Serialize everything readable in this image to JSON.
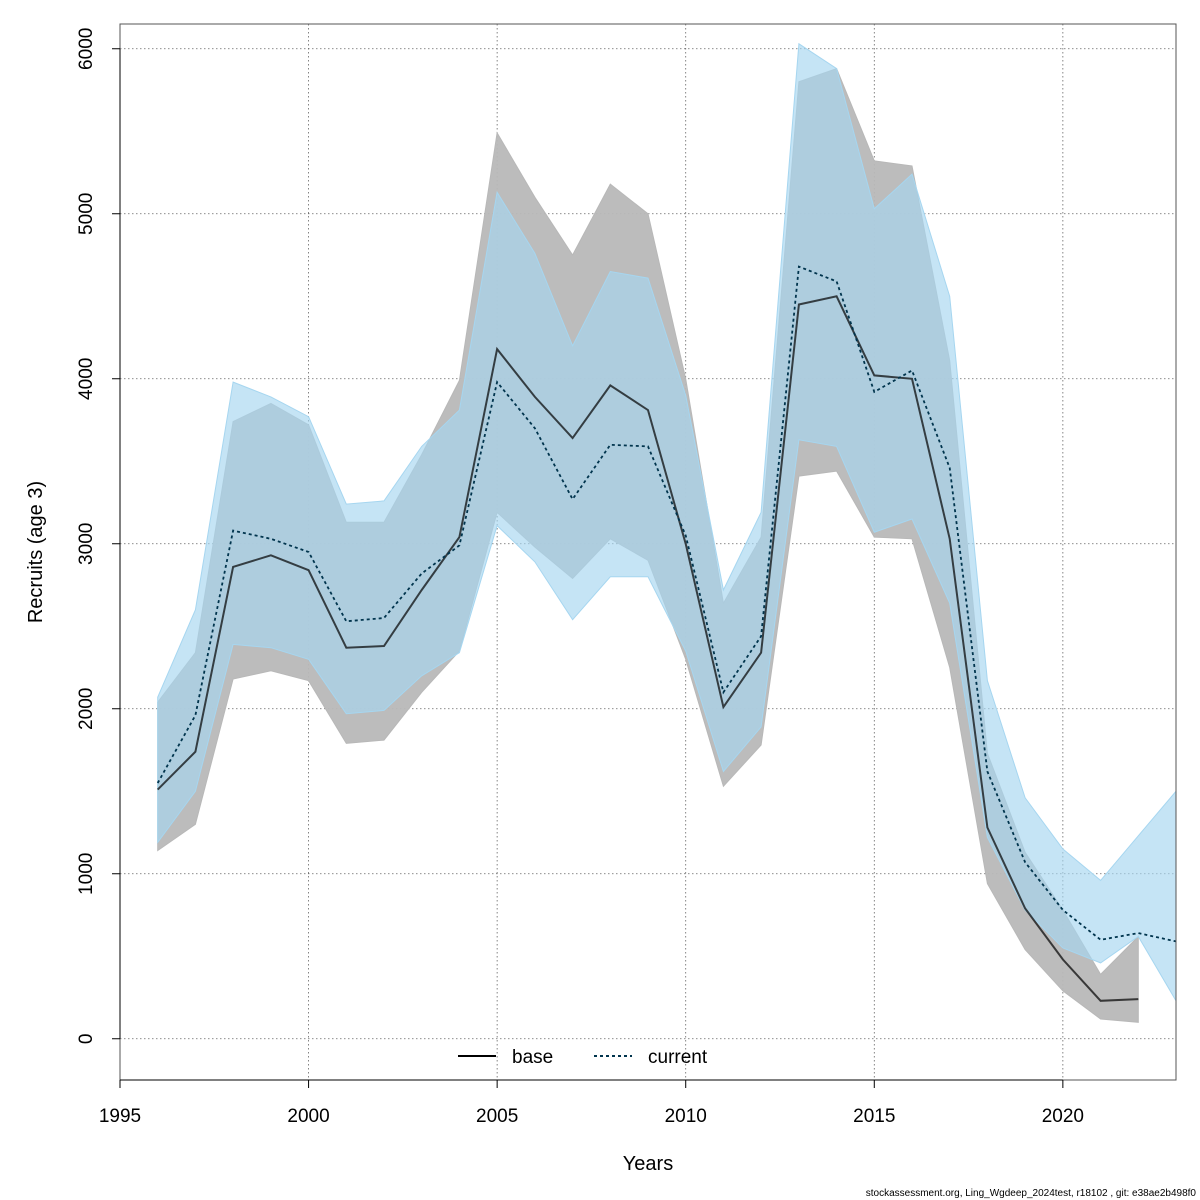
{
  "chart_data": {
    "type": "area",
    "xlabel": "Years",
    "ylabel": "Recruits (age 3)",
    "xlim": [
      1995,
      2023
    ],
    "ylim": [
      -250,
      6150
    ],
    "x_ticks": [
      1995,
      2000,
      2005,
      2010,
      2015,
      2020
    ],
    "y_ticks": [
      0,
      1000,
      2000,
      3000,
      4000,
      5000,
      6000
    ],
    "grid": true,
    "legend_position": "bottom-center",
    "series": [
      {
        "name": "base",
        "line_style": "solid",
        "color": "#000000",
        "band_color": "#b8b8b8",
        "x": [
          1996,
          1997,
          1998,
          1999,
          2000,
          2001,
          2002,
          2003,
          2004,
          2005,
          2006,
          2007,
          2008,
          2009,
          2010,
          2011,
          2012,
          2013,
          2014,
          2015,
          2016,
          2017,
          2018,
          2019,
          2020,
          2021,
          2022
        ],
        "values": [
          1510,
          1740,
          2860,
          2930,
          2840,
          2370,
          2380,
          2720,
          3040,
          4180,
          3890,
          3640,
          3960,
          3810,
          3000,
          2010,
          2340,
          4450,
          4500,
          4020,
          4000,
          3030,
          1280,
          790,
          480,
          230,
          240
        ],
        "lower": [
          1140,
          1300,
          2180,
          2230,
          2170,
          1790,
          1810,
          2100,
          2350,
          3190,
          2980,
          2790,
          3030,
          2900,
          2300,
          1530,
          1780,
          3410,
          3440,
          3040,
          3030,
          2250,
          940,
          540,
          290,
          120,
          100
        ],
        "upper": [
          2040,
          2340,
          3740,
          3850,
          3720,
          3130,
          3130,
          3540,
          3990,
          5490,
          5100,
          4750,
          5180,
          5000,
          4000,
          2640,
          3040,
          5800,
          5880,
          5320,
          5290,
          4110,
          1730,
          1130,
          780,
          390,
          620
        ]
      },
      {
        "name": "current",
        "line_style": "dotted",
        "color": "#00344d",
        "band_color": "#a6d6f0",
        "x": [
          1996,
          1997,
          1998,
          1999,
          2000,
          2001,
          2002,
          2003,
          2004,
          2005,
          2006,
          2007,
          2008,
          2009,
          2010,
          2011,
          2012,
          2013,
          2014,
          2015,
          2016,
          2017,
          2018,
          2019,
          2020,
          2021,
          2022,
          2023
        ],
        "values": [
          1550,
          1960,
          3080,
          3030,
          2950,
          2530,
          2550,
          2820,
          2990,
          3980,
          3700,
          3270,
          3600,
          3590,
          3050,
          2100,
          2440,
          4680,
          4590,
          3920,
          4050,
          3460,
          1620,
          1070,
          780,
          600,
          640,
          590
        ],
        "lower": [
          1190,
          1500,
          2390,
          2370,
          2300,
          1970,
          1990,
          2200,
          2340,
          3110,
          2890,
          2540,
          2800,
          2800,
          2350,
          1620,
          1890,
          3630,
          3590,
          3070,
          3150,
          2640,
          1220,
          780,
          550,
          460,
          620,
          230
        ],
        "upper": [
          2070,
          2600,
          3980,
          3890,
          3770,
          3240,
          3260,
          3590,
          3810,
          5130,
          4760,
          4200,
          4650,
          4610,
          3900,
          2720,
          3190,
          6030,
          5880,
          5030,
          5240,
          4500,
          2170,
          1460,
          1150,
          960,
          1230,
          1500
        ]
      }
    ]
  },
  "footer": "stockassessment.org, Ling_Wgdeep_2024test, r18102 , git: e38ae2b498f0"
}
